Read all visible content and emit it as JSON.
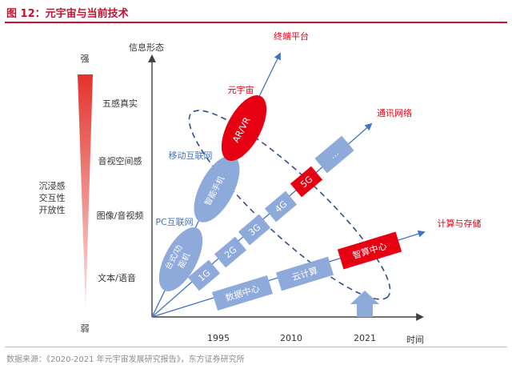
{
  "figure_title": "图 12：元宇宙与当前技术",
  "source_note": "数据来源：《2020-2021 年元宇宙发展研究报告》，东方证券研究所",
  "y_axis": {
    "title": "信息形态",
    "strong": "强",
    "weak": "弱",
    "levels": [
      "五感真实",
      "音视空间感",
      "图像/音视频",
      "文本/语音"
    ],
    "side_label": [
      "沉浸感",
      "交互性",
      "开放性"
    ]
  },
  "x_axis": {
    "title": "时间",
    "years": [
      "1995",
      "2010",
      "2021"
    ]
  },
  "arrows": {
    "terminal": "终端平台",
    "network": "通讯网络",
    "compute": "计算与存储"
  },
  "terminal_track": {
    "pc_label": "PC互联网",
    "mobile_label": "移动互联网",
    "metaverse_label": "元宇宙",
    "desktop": [
      "台式/功",
      "能机"
    ],
    "smartphone": "智能手机",
    "arvr": "AR/VR"
  },
  "network_track": [
    "1G",
    "2G",
    "3G",
    "4G",
    "5G",
    "…"
  ],
  "compute_track": [
    "数据中心",
    "云计算",
    "智算中心"
  ],
  "colors": {
    "accent_red": "#e60012",
    "node_blue": "#8eaadb",
    "axis_blue": "#4472c4",
    "label_blue": "#4472c4"
  }
}
